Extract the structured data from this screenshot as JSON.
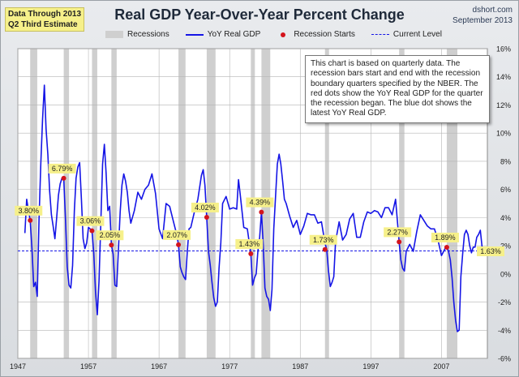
{
  "header": {
    "badge_line1": "Data Through 2013",
    "badge_line2": "Q2 Third Estimate",
    "title": "Real GDP Year-Over-Year Percent Change",
    "source_line1": "dshort.com",
    "source_line2": "September 2013"
  },
  "legend": {
    "recessions": "Recessions",
    "series": "YoY Real GDP",
    "recession_starts": "Recession Starts",
    "current_level": "Current Level"
  },
  "note": "This chart is based on quarterly data. The recession bars start and end with the recession boundary quarters specified by the NBER. The red dots show the YoY Real GDP for the quarter the recession began. The blue dot shows the latest YoY Real GDP.",
  "colors": {
    "line": "#1515e6",
    "recession": "#cfcfcf",
    "dot": "#d4141c",
    "label_bg": "#f6f08a"
  },
  "chart_data": {
    "type": "line",
    "title": "Real GDP Year-Over-Year Percent Change",
    "xlabel": "",
    "ylabel": "",
    "xlim": [
      1947.0,
      2013.5
    ],
    "ylim": [
      -6,
      16
    ],
    "y_axis_side": "right",
    "grid": true,
    "x_ticks": [
      1947,
      1957,
      1967,
      1977,
      1987,
      1997,
      2007
    ],
    "y_ticks": [
      -6,
      -4,
      -2,
      0,
      2,
      4,
      6,
      8,
      10,
      12,
      14,
      16
    ],
    "y_tick_labels": [
      "-6%",
      "-4%",
      "-2%",
      "0%",
      "2%",
      "4%",
      "6%",
      "8%",
      "10%",
      "12%",
      "14%",
      "16%"
    ],
    "recessions": [
      [
        1948.75,
        1949.75
      ],
      [
        1953.5,
        1954.25
      ],
      [
        1957.5,
        1958.25
      ],
      [
        1960.25,
        1961.0
      ],
      [
        1969.75,
        1970.75
      ],
      [
        1973.75,
        1975.0
      ],
      [
        1980.0,
        1980.5
      ],
      [
        1981.5,
        1982.75
      ],
      [
        1990.5,
        1991.0
      ],
      [
        2001.0,
        2001.75
      ],
      [
        2007.75,
        2009.25
      ]
    ],
    "recession_starts": [
      {
        "x": 1948.75,
        "y": 3.8,
        "label": "3.80%"
      },
      {
        "x": 1953.5,
        "y": 6.79,
        "label": "6.79%"
      },
      {
        "x": 1957.5,
        "y": 3.06,
        "label": "3.06%"
      },
      {
        "x": 1960.25,
        "y": 2.05,
        "label": "2.05%"
      },
      {
        "x": 1969.75,
        "y": 2.07,
        "label": "2.07%"
      },
      {
        "x": 1973.75,
        "y": 4.02,
        "label": "4.02%"
      },
      {
        "x": 1980.0,
        "y": 1.43,
        "label": "1.43%"
      },
      {
        "x": 1981.5,
        "y": 4.39,
        "label": "4.39%"
      },
      {
        "x": 1990.5,
        "y": 1.73,
        "label": "1.73%"
      },
      {
        "x": 2001.0,
        "y": 2.27,
        "label": "2.27%"
      },
      {
        "x": 2007.75,
        "y": 1.89,
        "label": "1.89%"
      }
    ],
    "current_level": {
      "x": 2013.25,
      "y": 1.63,
      "label": "1.63%"
    },
    "series": [
      {
        "name": "YoY Real GDP",
        "x": [
          1948.0,
          1948.25,
          1948.5,
          1948.75,
          1949.0,
          1949.25,
          1949.5,
          1949.75,
          1950.0,
          1950.25,
          1950.5,
          1950.75,
          1951.0,
          1951.25,
          1951.5,
          1951.75,
          1952.0,
          1952.25,
          1952.5,
          1952.75,
          1953.0,
          1953.25,
          1953.5,
          1953.75,
          1954.0,
          1954.25,
          1954.5,
          1954.75,
          1955.0,
          1955.25,
          1955.5,
          1955.75,
          1956.0,
          1956.25,
          1956.5,
          1956.75,
          1957.0,
          1957.25,
          1957.5,
          1957.75,
          1958.0,
          1958.25,
          1958.5,
          1958.75,
          1959.0,
          1959.25,
          1959.5,
          1959.75,
          1960.0,
          1960.25,
          1960.5,
          1960.75,
          1961.0,
          1961.25,
          1961.5,
          1961.75,
          1962.0,
          1962.25,
          1962.5,
          1962.75,
          1963.0,
          1963.5,
          1964.0,
          1964.5,
          1965.0,
          1965.5,
          1966.0,
          1966.5,
          1967.0,
          1967.5,
          1968.0,
          1968.5,
          1969.0,
          1969.5,
          1969.75,
          1970.0,
          1970.25,
          1970.5,
          1970.75,
          1971.0,
          1971.25,
          1971.5,
          1972.0,
          1972.5,
          1973.0,
          1973.25,
          1973.5,
          1973.75,
          1974.0,
          1974.25,
          1974.5,
          1974.75,
          1975.0,
          1975.25,
          1975.5,
          1975.75,
          1976.0,
          1976.5,
          1977.0,
          1977.5,
          1978.0,
          1978.25,
          1978.5,
          1979.0,
          1979.5,
          1980.0,
          1980.25,
          1980.5,
          1980.75,
          1981.0,
          1981.25,
          1981.5,
          1981.75,
          1982.0,
          1982.25,
          1982.5,
          1982.75,
          1983.0,
          1983.25,
          1983.5,
          1983.75,
          1984.0,
          1984.25,
          1984.5,
          1984.75,
          1985.0,
          1985.5,
          1986.0,
          1986.5,
          1987.0,
          1987.5,
          1988.0,
          1988.5,
          1989.0,
          1989.5,
          1990.0,
          1990.5,
          1990.75,
          1991.0,
          1991.25,
          1991.5,
          1991.75,
          1992.0,
          1992.5,
          1993.0,
          1993.5,
          1994.0,
          1994.5,
          1995.0,
          1995.5,
          1996.0,
          1996.5,
          1997.0,
          1997.5,
          1998.0,
          1998.5,
          1999.0,
          1999.5,
          2000.0,
          2000.5,
          2001.0,
          2001.25,
          2001.5,
          2001.75,
          2002.0,
          2002.5,
          2003.0,
          2003.5,
          2004.0,
          2004.5,
          2005.0,
          2005.5,
          2006.0,
          2006.5,
          2007.0,
          2007.5,
          2007.75,
          2008.0,
          2008.25,
          2008.5,
          2008.75,
          2009.0,
          2009.25,
          2009.5,
          2009.75,
          2010.0,
          2010.25,
          2010.5,
          2010.75,
          2011.0,
          2011.25,
          2011.5,
          2011.75,
          2012.0,
          2012.25,
          2012.5,
          2012.75,
          2013.0,
          2013.25
        ],
        "values": [
          2.9,
          5.3,
          4.5,
          3.8,
          1.8,
          -0.9,
          -0.6,
          -1.6,
          3.8,
          7.8,
          11.0,
          13.4,
          10.3,
          8.5,
          5.9,
          4.2,
          3.4,
          2.5,
          4.0,
          5.6,
          6.4,
          6.8,
          6.79,
          3.8,
          0.5,
          -0.8,
          -1.0,
          0.6,
          4.5,
          6.8,
          7.6,
          7.9,
          5.3,
          2.5,
          1.8,
          2.2,
          3.3,
          3.2,
          3.06,
          1.5,
          -1.3,
          -2.9,
          -0.5,
          3.6,
          7.8,
          9.2,
          7.2,
          4.5,
          4.8,
          2.05,
          1.4,
          -0.8,
          -0.9,
          1.8,
          4.4,
          6.3,
          7.1,
          6.6,
          5.8,
          4.5,
          3.6,
          4.5,
          5.8,
          5.3,
          6.0,
          6.3,
          7.1,
          5.7,
          3.2,
          2.5,
          5.0,
          4.8,
          3.8,
          2.8,
          2.07,
          0.5,
          0.1,
          -0.2,
          -0.4,
          1.6,
          3.2,
          3.3,
          4.4,
          5.3,
          7.0,
          7.4,
          6.3,
          4.02,
          1.6,
          0.6,
          -0.6,
          -1.7,
          -2.3,
          -2.0,
          0.4,
          2.2,
          5.0,
          5.5,
          4.6,
          4.7,
          4.6,
          6.7,
          5.6,
          3.3,
          3.2,
          1.43,
          -0.8,
          -0.3,
          0.0,
          1.6,
          2.6,
          4.39,
          2.1,
          -1.0,
          -1.6,
          -1.8,
          -2.6,
          -1.1,
          3.2,
          5.5,
          7.8,
          8.5,
          7.8,
          6.6,
          5.3,
          5.0,
          4.1,
          3.3,
          3.8,
          2.8,
          3.4,
          4.3,
          4.2,
          4.2,
          3.6,
          3.7,
          2.2,
          1.73,
          0.2,
          -0.9,
          -0.6,
          -0.2,
          2.3,
          3.7,
          2.4,
          2.8,
          3.9,
          4.3,
          2.6,
          2.6,
          3.7,
          4.4,
          4.3,
          4.5,
          4.4,
          4.0,
          4.7,
          4.7,
          4.2,
          5.3,
          2.27,
          1.0,
          0.4,
          0.2,
          1.6,
          2.1,
          1.6,
          3.0,
          4.2,
          3.8,
          3.4,
          3.2,
          3.2,
          2.4,
          1.3,
          1.8,
          1.89,
          1.6,
          1.0,
          -0.3,
          -2.0,
          -3.3,
          -4.1,
          -4.0,
          -0.2,
          1.4,
          2.8,
          3.1,
          2.8,
          2.0,
          1.5,
          1.9,
          1.9,
          2.6,
          2.8,
          3.1,
          1.9,
          1.3,
          1.63
        ]
      }
    ]
  }
}
